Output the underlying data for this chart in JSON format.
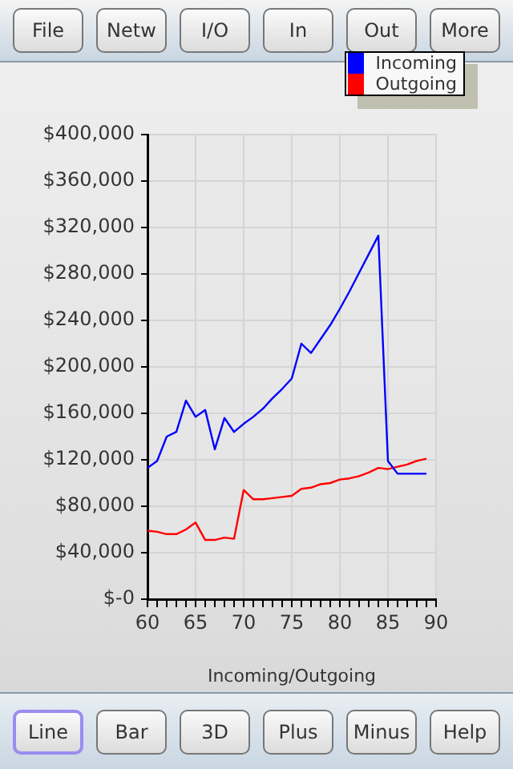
{
  "chart_data": {
    "type": "line",
    "xlabel": "Incoming/Outgoing",
    "x": [
      60,
      61,
      62,
      63,
      64,
      65,
      66,
      67,
      68,
      69,
      70,
      71,
      72,
      73,
      74,
      75,
      76,
      77,
      78,
      79,
      80,
      81,
      82,
      83,
      84,
      85,
      86,
      87,
      88,
      89
    ],
    "series": [
      {
        "name": "Incoming",
        "color": "#0000ff",
        "values": [
          113000,
          119000,
          140000,
          144000,
          171000,
          157000,
          163000,
          129000,
          156000,
          144000,
          151000,
          157000,
          164000,
          173000,
          181000,
          190000,
          220000,
          212000,
          224000,
          236000,
          250000,
          265000,
          281000,
          297000,
          313000,
          119000,
          108000,
          108000,
          108000,
          108000
        ]
      },
      {
        "name": "Outgoing",
        "color": "#ff0000",
        "values": [
          59000,
          58000,
          56000,
          56000,
          60000,
          66000,
          51000,
          51000,
          53000,
          52000,
          94000,
          86000,
          86000,
          87000,
          88000,
          89000,
          95000,
          96000,
          99000,
          100000,
          103000,
          104000,
          106000,
          109000,
          113000,
          112000,
          114000,
          116000,
          119000,
          121000
        ]
      }
    ],
    "xlim": [
      60,
      90
    ],
    "xticks": [
      60,
      {
        "value": 61,
        "label": null
      },
      {
        "value": 62,
        "label": null
      },
      {
        "value": 63,
        "label": null
      },
      {
        "value": 64,
        "label": null
      },
      65,
      {
        "value": 66,
        "label": null
      },
      {
        "value": 67,
        "label": null
      },
      {
        "value": 68,
        "label": null
      },
      {
        "value": 69,
        "label": null
      },
      70,
      {
        "value": 71,
        "label": null
      },
      {
        "value": 72,
        "label": null
      },
      {
        "value": 73,
        "label": null
      },
      {
        "value": 74,
        "label": null
      },
      75,
      {
        "value": 76,
        "label": null
      },
      {
        "value": 77,
        "label": null
      },
      {
        "value": 78,
        "label": null
      },
      {
        "value": 79,
        "label": null
      },
      80,
      {
        "value": 81,
        "label": null
      },
      {
        "value": 82,
        "label": null
      },
      {
        "value": 83,
        "label": null
      },
      {
        "value": 84,
        "label": null
      },
      85,
      {
        "value": 86,
        "label": null
      },
      {
        "value": 87,
        "label": null
      },
      {
        "value": 88,
        "label": null
      },
      {
        "value": 89,
        "label": null
      },
      90
    ],
    "ylim": [
      0,
      400000
    ],
    "yticks": [
      {
        "value": 0,
        "label": "$-0"
      },
      {
        "value": 40000,
        "label": "$40,000"
      },
      {
        "value": 80000,
        "label": "$80,000"
      },
      {
        "value": 120000,
        "label": "$120,000"
      },
      {
        "value": 160000,
        "label": "$160,000"
      },
      {
        "value": 200000,
        "label": "$200,000"
      },
      {
        "value": 240000,
        "label": "$240,000"
      },
      {
        "value": 280000,
        "label": "$280,000"
      },
      {
        "value": 320000,
        "label": "$320,000"
      },
      {
        "value": 360000,
        "label": "$360,000"
      },
      {
        "value": 400000,
        "label": "$400,000"
      }
    ],
    "grid": true,
    "legend": "top right",
    "marker": "none",
    "line_style": "solid",
    "annotations": [
      "File",
      "Netw",
      "I/O",
      "In",
      "Out",
      "More",
      "Line",
      "Bar",
      "3D",
      "Plus",
      "Minus",
      "Help"
    ]
  }
}
